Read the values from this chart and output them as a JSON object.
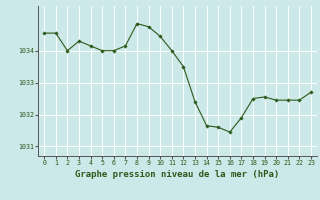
{
  "x": [
    0,
    1,
    2,
    3,
    4,
    5,
    6,
    7,
    8,
    9,
    10,
    11,
    12,
    13,
    14,
    15,
    16,
    17,
    18,
    19,
    20,
    21,
    22,
    23
  ],
  "y": [
    1034.55,
    1034.55,
    1034.0,
    1034.3,
    1034.15,
    1034.0,
    1034.0,
    1034.15,
    1034.85,
    1034.75,
    1034.45,
    1034.0,
    1033.5,
    1032.4,
    1031.65,
    1031.6,
    1031.45,
    1031.9,
    1032.5,
    1032.55,
    1032.45,
    1032.45,
    1032.45,
    1032.7
  ],
  "line_color": "#2d5a1b",
  "marker": "D",
  "marker_size": 1.8,
  "line_width": 0.8,
  "bg_color": "#cce8e8",
  "grid_color": "#ffffff",
  "xlabel": "Graphe pression niveau de la mer (hPa)",
  "xlabel_color": "#2d5a1b",
  "ylabel_ticks": [
    1031,
    1032,
    1033,
    1034
  ],
  "ytop": 1035.4,
  "ybottom": 1030.7,
  "xticks": [
    0,
    1,
    2,
    3,
    4,
    5,
    6,
    7,
    8,
    9,
    10,
    11,
    12,
    13,
    14,
    15,
    16,
    17,
    18,
    19,
    20,
    21,
    22,
    23
  ],
  "tick_color": "#2d5a1b",
  "tick_fontsize": 4.8,
  "xlabel_fontsize": 6.5,
  "axis_color": "#555555"
}
